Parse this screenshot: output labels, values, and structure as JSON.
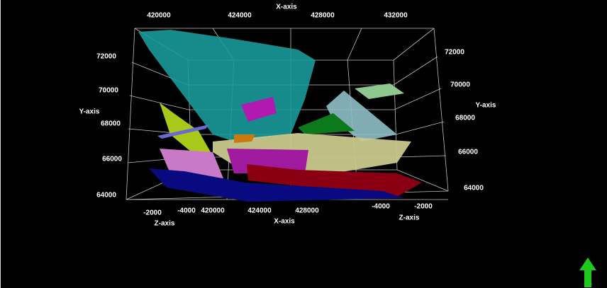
{
  "x_axis_top": {
    "label": "X-axis",
    "ticks": [
      420000,
      424000,
      428000,
      432000
    ]
  },
  "x_axis_bottom": {
    "label": "X-axis",
    "ticks": [
      420000,
      424000,
      428000
    ]
  },
  "y_axis_left": {
    "label": "Y-axis",
    "ticks": [
      72000,
      70000,
      68000,
      66000,
      64000
    ]
  },
  "y_axis_right": {
    "label": "Y-axis",
    "ticks": [
      72000,
      70000,
      68000,
      66000,
      64000
    ]
  },
  "z_axis_left": {
    "label": "Z-axis",
    "ticks": [
      -2000,
      -4000
    ]
  },
  "z_axis_right": {
    "label": "Z-axis",
    "ticks": [
      -4000,
      -2000
    ]
  }
}
